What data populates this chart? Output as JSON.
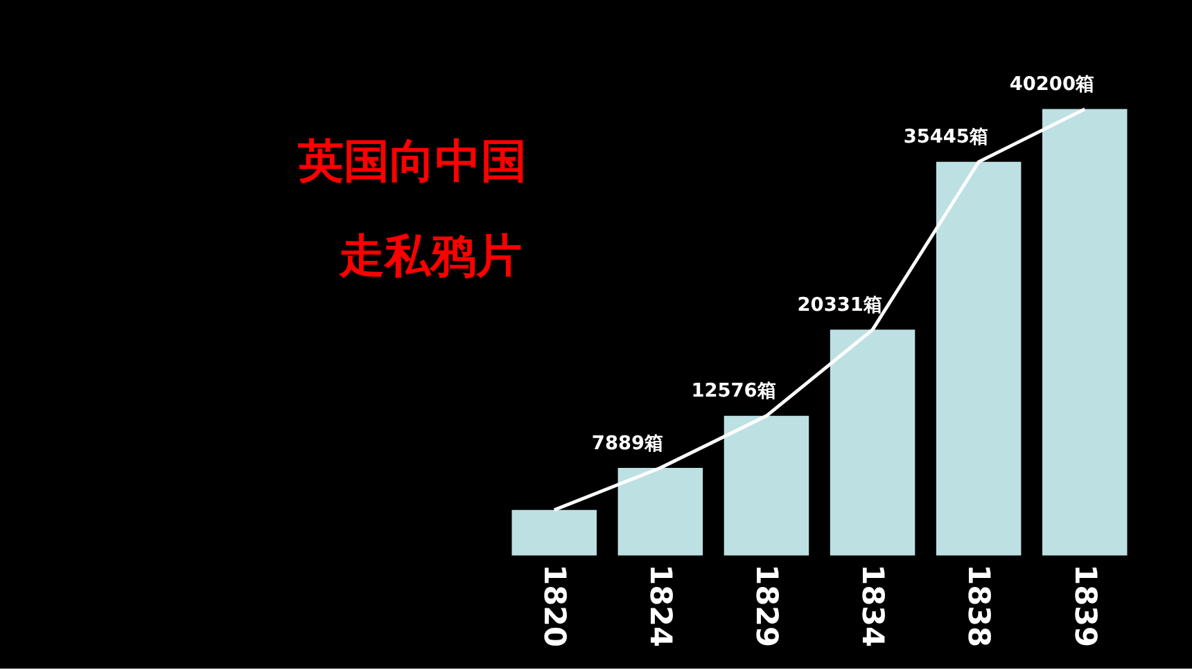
{
  "chart_data": {
    "type": "bar",
    "title": "英国向中国走私鸦片",
    "categories": [
      "1820",
      "1824",
      "1829",
      "1834",
      "1838",
      "1839"
    ],
    "series": [
      {
        "color": "#bde0e3",
        "values": [
          4100,
          7889,
          12576,
          20331,
          35445,
          40200
        ],
        "value_labels": [
          null,
          "7889箱",
          "12576箱",
          "20331箱",
          "35445箱",
          "40200箱"
        ]
      },
      {
        "type": "line",
        "color": "#ffffff",
        "values": [
          4100,
          7889,
          12576,
          20331,
          35445,
          40200
        ]
      }
    ],
    "grid": false
  }
}
